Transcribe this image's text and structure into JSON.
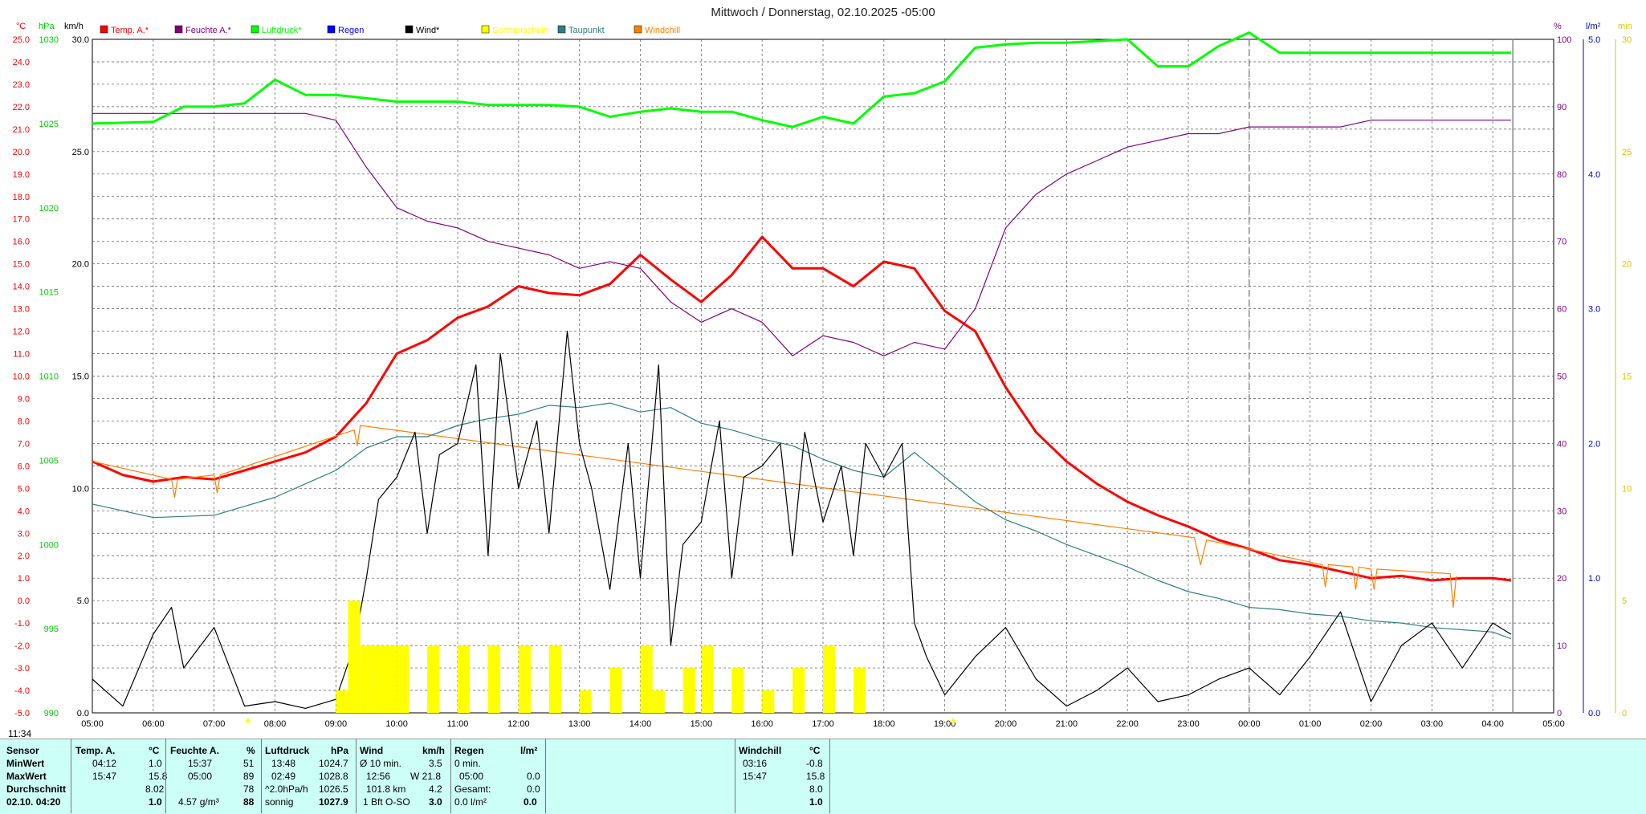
{
  "title": "Mittwoch / Donnerstag, 02.10.2025  -05:00",
  "time_label": "11:34",
  "legend": [
    {
      "label": "Temp. A.*",
      "color": "#ff0000"
    },
    {
      "label": "Feuchte A.*",
      "color": "#800080"
    },
    {
      "label": "Luftdruck*",
      "color": "#00ff00"
    },
    {
      "label": "Regen",
      "color": "#0000ff"
    },
    {
      "label": "Wind*",
      "color": "#000000"
    },
    {
      "label": "Sonnenschein",
      "color": "#ffff00"
    },
    {
      "label": "Taupunkt",
      "color": "#2f8080"
    },
    {
      "label": "Windchill",
      "color": "#ff8000"
    }
  ],
  "axes": {
    "temp_unit": "°C",
    "press_unit": "hPa",
    "wind_unit": "km/h",
    "hum_unit": "%",
    "rain_unit": "l/m²",
    "sun_unit": "min",
    "temp_ticks": [
      "25.0",
      "24.0",
      "23.0",
      "22.0",
      "21.0",
      "20.0",
      "19.0",
      "18.0",
      "17.0",
      "16.0",
      "15.0",
      "14.0",
      "13.0",
      "12.0",
      "11.0",
      "10.0",
      "9.0",
      "8.0",
      "7.0",
      "6.0",
      "5.0",
      "4.0",
      "3.0",
      "2.0",
      "1.0",
      "0.0",
      "-1.0",
      "-2.0",
      "-3.0",
      "-4.0",
      "-5.0"
    ],
    "press_ticks": [
      "1030",
      "1025",
      "1020",
      "1015",
      "1010",
      "1005",
      "1000",
      "995",
      "990"
    ],
    "wind_ticks": [
      "30.0",
      "25.0",
      "20.0",
      "15.0",
      "10.0",
      "5.0",
      "0.0"
    ],
    "hum_ticks": [
      "100",
      "90",
      "80",
      "70",
      "60",
      "50",
      "40",
      "30",
      "20",
      "10",
      "0"
    ],
    "rain_ticks": [
      "5.0",
      "4.0",
      "3.0",
      "2.0",
      "1.0",
      "0.0"
    ],
    "sun_ticks": [
      "30",
      "25",
      "20",
      "15",
      "10",
      "5",
      "0"
    ],
    "x_ticks": [
      "05:00",
      "06:00",
      "07:00",
      "08:00",
      "09:00",
      "10:00",
      "11:00",
      "12:00",
      "13:00",
      "14:00",
      "15:00",
      "16:00",
      "17:00",
      "18:00",
      "19:00",
      "20:00",
      "21:00",
      "22:00",
      "23:00",
      "00:00",
      "01:00",
      "02:00",
      "03:00",
      "04:00",
      "05:00"
    ]
  },
  "chart_data": {
    "type": "line",
    "x_unit": "hours since 05:00",
    "temp_range": [
      -5,
      25
    ],
    "pressure_range": [
      990,
      1030
    ],
    "humidity_range": [
      0,
      100
    ],
    "wind_range": [
      0,
      30
    ],
    "series": [
      {
        "name": "Temp. A.*",
        "axis": "temp",
        "x": [
          0,
          0.5,
          1,
          1.5,
          2,
          2.5,
          3,
          3.5,
          4,
          4.5,
          5,
          5.5,
          6,
          6.5,
          7,
          7.5,
          8,
          8.5,
          9,
          9.5,
          10,
          10.5,
          11,
          11.5,
          12,
          12.5,
          13,
          13.5,
          14,
          14.5,
          15,
          15.5,
          16,
          16.5,
          17,
          17.5,
          18,
          18.5,
          19,
          19.5,
          20,
          20.5,
          21,
          21.5,
          22,
          22.5,
          23,
          23.3
        ],
        "y": [
          6.2,
          5.6,
          5.3,
          5.5,
          5.4,
          5.8,
          6.2,
          6.6,
          7.3,
          8.8,
          11.0,
          11.6,
          12.6,
          13.1,
          14.0,
          13.7,
          13.6,
          14.1,
          15.4,
          14.3,
          13.3,
          14.5,
          16.2,
          14.8,
          14.8,
          14.0,
          15.1,
          14.8,
          12.9,
          12.0,
          9.5,
          7.5,
          6.2,
          5.2,
          4.4,
          3.8,
          3.3,
          2.7,
          2.3,
          1.8,
          1.6,
          1.3,
          1.0,
          1.1,
          0.9,
          1.0,
          1.0,
          0.9
        ]
      },
      {
        "name": "Windchill",
        "axis": "temp",
        "x": [
          0,
          1.3,
          1.35,
          1.4,
          2,
          2.05,
          2.1,
          4.3,
          4.35,
          4.4,
          18.1,
          18.2,
          18.3,
          20.2,
          20.25,
          20.3,
          20.7,
          20.75,
          20.8,
          21.0,
          21.05,
          21.1,
          22.3,
          22.35,
          22.4
        ],
        "y": [
          6.2,
          5.4,
          4.6,
          5.4,
          5.6,
          4.8,
          5.6,
          7.6,
          6.9,
          7.8,
          2.8,
          1.6,
          2.7,
          1.6,
          0.6,
          1.6,
          1.5,
          0.5,
          1.5,
          1.4,
          0.5,
          1.4,
          1.2,
          -0.3,
          1.1
        ]
      },
      {
        "name": "Taupunkt",
        "axis": "temp",
        "x": [
          0,
          1,
          2,
          3,
          3.5,
          4,
          4.5,
          5,
          5.5,
          6,
          6.5,
          7,
          7.5,
          8,
          8.5,
          9,
          9.5,
          10,
          10.5,
          11,
          11.5,
          12,
          12.5,
          13,
          13.5,
          14,
          14.5,
          15,
          15.5,
          16,
          16.5,
          17,
          17.5,
          18,
          18.5,
          19,
          19.5,
          20,
          20.5,
          21,
          21.5,
          22,
          22.5,
          23,
          23.3
        ],
        "y": [
          4.3,
          3.7,
          3.8,
          4.6,
          5.2,
          5.8,
          6.8,
          7.3,
          7.3,
          7.8,
          8.1,
          8.3,
          8.7,
          8.6,
          8.8,
          8.4,
          8.6,
          7.9,
          7.6,
          7.2,
          6.9,
          6.3,
          5.8,
          5.5,
          6.6,
          5.5,
          4.4,
          3.6,
          3.1,
          2.5,
          2.0,
          1.5,
          0.9,
          0.4,
          0.1,
          -0.3,
          -0.4,
          -0.6,
          -0.7,
          -0.9,
          -1.0,
          -1.2,
          -1.3,
          -1.4,
          -1.7
        ]
      },
      {
        "name": "Feuchte A.*",
        "axis": "humidity",
        "x": [
          0,
          3,
          3.5,
          4,
          4.5,
          5,
          5.5,
          6,
          6.5,
          7,
          7.5,
          8,
          8.5,
          9,
          9.5,
          10,
          10.5,
          11,
          11.5,
          12,
          12.5,
          13,
          13.5,
          14,
          14.5,
          15,
          15.5,
          16,
          16.5,
          17,
          17.5,
          18,
          18.5,
          19,
          19.5,
          20,
          20.5,
          21,
          21.5,
          22,
          22.5,
          23,
          23.3
        ],
        "y": [
          89,
          89,
          89,
          88,
          81,
          75,
          73,
          72,
          70,
          69,
          68,
          66,
          67,
          66,
          61,
          58,
          60,
          58,
          53,
          56,
          55,
          53,
          55,
          54,
          60,
          72,
          77,
          80,
          82,
          84,
          85,
          86,
          86,
          87,
          87,
          87,
          87,
          88,
          88,
          88,
          88,
          88,
          88
        ]
      },
      {
        "name": "Luftdruck*",
        "axis": "pressure",
        "x": [
          0,
          1,
          1.5,
          2,
          2.5,
          3,
          3.5,
          4,
          4.5,
          5,
          5.5,
          6,
          6.5,
          7,
          7.5,
          8,
          8.5,
          9,
          9.5,
          10,
          10.5,
          11,
          11.5,
          12,
          12.5,
          13,
          13.5,
          14,
          14.5,
          15,
          15.5,
          16,
          16.5,
          17,
          17.5,
          18,
          18.5,
          19,
          19.5,
          20,
          20.5,
          21,
          21.5,
          22,
          22.5,
          23,
          23.3
        ],
        "y": [
          1025.0,
          1025.1,
          1026.0,
          1026.0,
          1026.2,
          1027.6,
          1026.7,
          1026.7,
          1026.5,
          1026.3,
          1026.3,
          1026.3,
          1026.1,
          1026.1,
          1026.1,
          1026.0,
          1025.4,
          1025.7,
          1025.9,
          1025.7,
          1025.7,
          1025.2,
          1024.8,
          1025.4,
          1025.0,
          1026.6,
          1026.8,
          1027.5,
          1029.5,
          1029.7,
          1029.8,
          1029.8,
          1029.9,
          1030.0,
          1028.4,
          1028.4,
          1029.6,
          1030.4,
          1029.2,
          1029.2,
          1029.2,
          1029.2,
          1029.2,
          1029.2,
          1029.2,
          1029.2,
          1029.2
        ]
      },
      {
        "name": "Wind*",
        "axis": "wind",
        "x": [
          0,
          0.5,
          1,
          1.3,
          1.5,
          2,
          2.5,
          3,
          3.5,
          4,
          4.3,
          4.5,
          4.7,
          5,
          5.3,
          5.5,
          5.7,
          6,
          6.3,
          6.5,
          6.7,
          7,
          7.3,
          7.5,
          7.8,
          8,
          8.2,
          8.5,
          8.8,
          9,
          9.3,
          9.5,
          9.7,
          10,
          10.3,
          10.5,
          10.7,
          11,
          11.3,
          11.5,
          11.7,
          12,
          12.3,
          12.5,
          12.7,
          13,
          13.3,
          13.5,
          13.7,
          14,
          14.5,
          15,
          15.5,
          16,
          16.5,
          17,
          17.5,
          18,
          18.5,
          19,
          19.5,
          20,
          20.5,
          21,
          21.5,
          22,
          22.5,
          23,
          23.3
        ],
        "y": [
          1.5,
          0.3,
          3.5,
          4.7,
          2.0,
          3.8,
          0.3,
          0.5,
          0.2,
          0.6,
          3.0,
          6.0,
          9.5,
          10.5,
          12.5,
          8.0,
          11.5,
          12.0,
          15.5,
          7.0,
          16.0,
          10.0,
          13.0,
          8.0,
          17.0,
          12.0,
          10.0,
          5.5,
          12.0,
          6.0,
          15.5,
          3.0,
          7.5,
          8.5,
          13.0,
          6.0,
          10.5,
          11.0,
          12.0,
          7.0,
          12.5,
          8.5,
          11.0,
          7.0,
          12.0,
          10.5,
          12.0,
          4.0,
          2.5,
          0.8,
          2.5,
          3.8,
          1.5,
          0.3,
          1.0,
          2.0,
          0.5,
          0.8,
          1.5,
          2.0,
          0.8,
          2.5,
          4.5,
          0.5,
          3.0,
          4.0,
          2.0,
          4.0,
          3.5
        ]
      },
      {
        "name": "Sonnenschein",
        "axis": "sun",
        "x": [
          4.0,
          4.2,
          4.4,
          4.6,
          4.8,
          5.0,
          5.5,
          6.0,
          6.5,
          7.0,
          7.5,
          8.0,
          8.5,
          9.0,
          9.2,
          9.5,
          9.7,
          10.0,
          10.5,
          11.0,
          11.5,
          12.0,
          12.5,
          12.7
        ],
        "y": [
          1,
          5,
          3,
          3,
          3,
          3,
          3,
          3,
          3,
          3,
          3,
          1,
          2,
          3,
          1,
          0,
          2,
          3,
          2,
          1,
          2,
          3,
          2,
          0
        ]
      }
    ]
  },
  "footer": {
    "sensor": {
      "h": "Sensor",
      "r1": "MinWert",
      "r2": "MaxWert",
      "r3": "Durchschnitt",
      "r4": "02.10. 04:20"
    },
    "temp": {
      "h": "Temp. A.",
      "u": "°C",
      "t1": "04:12",
      "v1": "1.0",
      "t2": "15:47",
      "v2": "15.8",
      "v3": "8.02",
      "v4": "1.0"
    },
    "hum": {
      "h": "Feuchte A.",
      "u": "%",
      "t1": "15:37",
      "v1": "51",
      "t2": "05:00",
      "v2": "89",
      "v3": "78",
      "t4": "4.57 g/m³",
      "v4": "88"
    },
    "press": {
      "h": "Luftdruck",
      "u": "hPa",
      "t1": "13:48",
      "v1": "1024.7",
      "t2": "02:49",
      "v2": "1028.8",
      "t3": "^2.0hPa/h",
      "v3": "1026.5",
      "t4": "sonnig",
      "v4": "1027.9"
    },
    "wind": {
      "h": "Wind",
      "u": "km/h",
      "t1": "Ø 10 min.",
      "v1": "3.5",
      "t2": "12:56",
      "v2": "W 21.8",
      "t3": "101.8 km",
      "v3": "4.2",
      "t4": "1 Bft O-SO",
      "v4": "3.0"
    },
    "rain": {
      "h": "Regen",
      "u": "l/m²",
      "t1": "0 min.",
      "v1": "",
      "t2": "05:00",
      "v2": "0.0",
      "t3": "Gesamt:",
      "v3": "0.0",
      "t4": "0.0 l/m²",
      "v4": "0.0"
    },
    "chill": {
      "h": "Windchill",
      "u": "°C",
      "t1": "03:16",
      "v1": "-0.8",
      "t2": "15:47",
      "v2": "15.8",
      "v3": "8.0",
      "v4": "1.0"
    }
  }
}
